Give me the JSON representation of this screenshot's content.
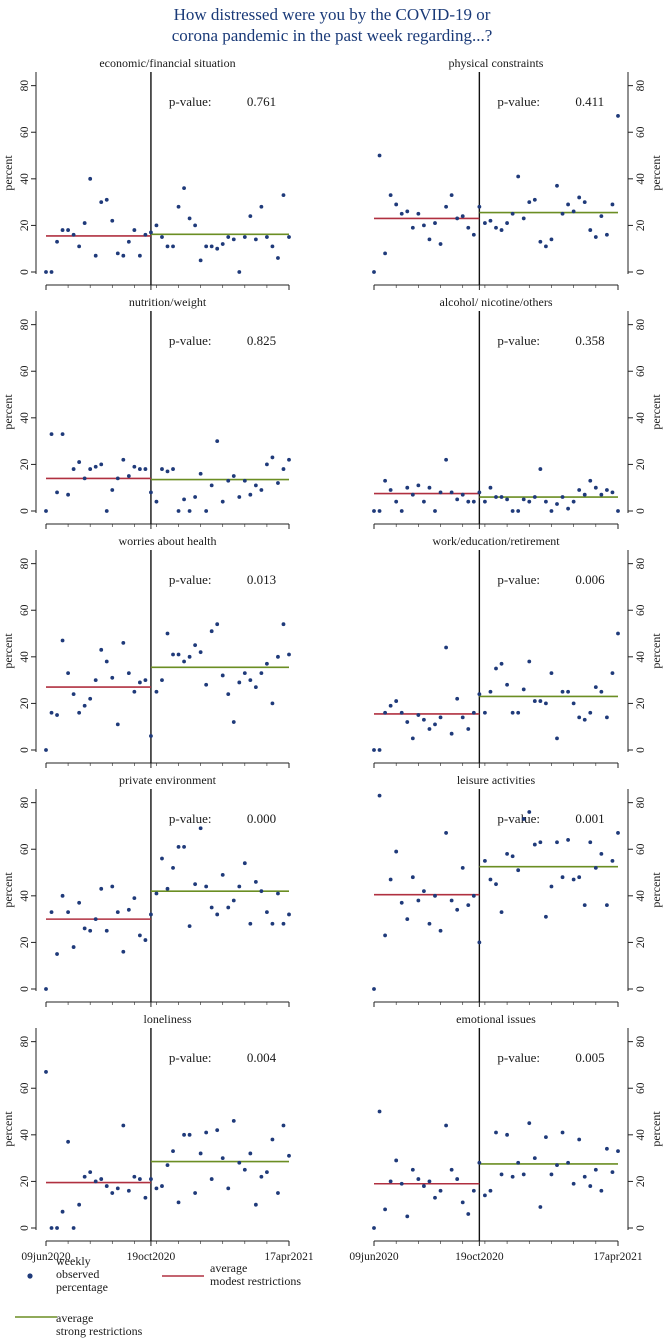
{
  "title_lines": [
    "How distressed were you by the COVID-19 or",
    "corona pandemic in the past week regarding...?"
  ],
  "colors": {
    "points": "#1f3a7a",
    "modest": "#b03040",
    "strong": "#6b8e23",
    "title": "#1a3a78",
    "axis": "#222222"
  },
  "x_tick_labels": [
    "09jun2020",
    "19oct2020",
    "17apr2021"
  ],
  "y_axis_label": "percent",
  "pvalue_label": "p-value:",
  "legend": {
    "points": [
      "weekly",
      "observed",
      "percentage"
    ],
    "modest": [
      "average",
      "modest restrictions"
    ],
    "strong": [
      "average",
      "strong restrictions"
    ]
  },
  "chart_data": [
    {
      "type": "scatter",
      "title": "economic/financial situation",
      "pvalue": "0.761",
      "ylim": [
        0,
        85
      ],
      "yticks": [
        0,
        20,
        40,
        60,
        80
      ],
      "cutoff_week": 19,
      "total_weeks": 45,
      "mean_modest": 15.5,
      "mean_strong": 16.2,
      "values": [
        0,
        0,
        13,
        18,
        18,
        16,
        11,
        21,
        40,
        7,
        30,
        31,
        22,
        8,
        7,
        13,
        18,
        7,
        16,
        17,
        20,
        15,
        11,
        11,
        28,
        36,
        23,
        20,
        5,
        11,
        11,
        10,
        12,
        15,
        14,
        0,
        15,
        24,
        14,
        28,
        15,
        11,
        6,
        33,
        15
      ]
    },
    {
      "type": "scatter",
      "title": "physical constraints",
      "pvalue": "0.411",
      "ylim": [
        0,
        85
      ],
      "yticks": [
        0,
        20,
        40,
        60,
        80
      ],
      "cutoff_week": 19,
      "total_weeks": 45,
      "mean_modest": 23,
      "mean_strong": 25.5,
      "values": [
        0,
        50,
        8,
        33,
        29,
        25,
        26,
        19,
        25,
        20,
        14,
        21,
        12,
        28,
        33,
        23,
        24,
        19,
        16,
        28,
        21,
        22,
        19,
        18,
        21,
        25,
        41,
        23,
        30,
        31,
        13,
        11,
        14,
        37,
        25,
        29,
        26,
        32,
        30,
        18,
        15,
        24,
        16,
        29,
        67
      ]
    },
    {
      "type": "scatter",
      "title": "nutrition/weight",
      "pvalue": "0.825",
      "ylim": [
        0,
        85
      ],
      "yticks": [
        0,
        20,
        40,
        60,
        80
      ],
      "cutoff_week": 19,
      "total_weeks": 45,
      "mean_modest": 14,
      "mean_strong": 13.5,
      "values": [
        0,
        33,
        8,
        33,
        7,
        18,
        21,
        14,
        18,
        19,
        20,
        0,
        9,
        14,
        22,
        15,
        19,
        18,
        18,
        8,
        4,
        18,
        17,
        18,
        0,
        5,
        0,
        6,
        16,
        0,
        11,
        30,
        4,
        13,
        15,
        6,
        13,
        7,
        11,
        9,
        20,
        23,
        12,
        18,
        22
      ]
    },
    {
      "type": "scatter",
      "title": "alcohol/ nicotine/others",
      "pvalue": "0.358",
      "ylim": [
        0,
        85
      ],
      "yticks": [
        0,
        20,
        40,
        60,
        80
      ],
      "cutoff_week": 19,
      "total_weeks": 45,
      "mean_modest": 7.5,
      "mean_strong": 6,
      "values": [
        0,
        0,
        13,
        9,
        4,
        0,
        10,
        7,
        11,
        4,
        10,
        0,
        8,
        22,
        8,
        5,
        7,
        4,
        4,
        8,
        4,
        10,
        6,
        6,
        5,
        0,
        0,
        5,
        4,
        6,
        18,
        4,
        0,
        3,
        6,
        1,
        4,
        9,
        7,
        13,
        10,
        7,
        9,
        8,
        0
      ]
    },
    {
      "type": "scatter",
      "title": "worries about health",
      "pvalue": "0.013",
      "ylim": [
        0,
        85
      ],
      "yticks": [
        0,
        20,
        40,
        60,
        80
      ],
      "cutoff_week": 19,
      "total_weeks": 45,
      "mean_modest": 27,
      "mean_strong": 35.5,
      "values": [
        0,
        16,
        15,
        47,
        33,
        24,
        16,
        19,
        22,
        30,
        43,
        38,
        31,
        11,
        46,
        33,
        25,
        29,
        30,
        6,
        25,
        30,
        50,
        41,
        41,
        38,
        40,
        45,
        42,
        28,
        51,
        54,
        32,
        24,
        12,
        29,
        33,
        30,
        27,
        33,
        37,
        20,
        40,
        54,
        41
      ]
    },
    {
      "type": "scatter",
      "title": "work/education/retirement",
      "pvalue": "0.006",
      "ylim": [
        0,
        85
      ],
      "yticks": [
        0,
        20,
        40,
        60,
        80
      ],
      "cutoff_week": 19,
      "total_weeks": 45,
      "mean_modest": 15.5,
      "mean_strong": 23,
      "values": [
        0,
        0,
        16,
        19,
        21,
        16,
        12,
        5,
        15,
        13,
        9,
        11,
        14,
        44,
        7,
        22,
        14,
        9,
        16,
        24,
        16,
        25,
        35,
        37,
        28,
        16,
        16,
        26,
        38,
        21,
        21,
        20,
        33,
        5,
        25,
        25,
        20,
        14,
        13,
        16,
        27,
        25,
        14,
        33,
        50
      ]
    },
    {
      "type": "scatter",
      "title": "private environment",
      "pvalue": "0.000",
      "ylim": [
        0,
        85
      ],
      "yticks": [
        0,
        20,
        40,
        60,
        80
      ],
      "cutoff_week": 19,
      "total_weeks": 45,
      "mean_modest": 30,
      "mean_strong": 42,
      "values": [
        0,
        33,
        15,
        40,
        33,
        18,
        37,
        26,
        25,
        30,
        43,
        25,
        44,
        33,
        16,
        34,
        39,
        23,
        21,
        32,
        41,
        56,
        43,
        52,
        61,
        61,
        27,
        45,
        69,
        44,
        35,
        32,
        49,
        35,
        38,
        44,
        54,
        28,
        46,
        42,
        33,
        28,
        41,
        28,
        32
      ]
    },
    {
      "type": "scatter",
      "title": "leisure activities",
      "pvalue": "0.001",
      "ylim": [
        0,
        85
      ],
      "yticks": [
        0,
        20,
        40,
        60,
        80
      ],
      "cutoff_week": 19,
      "total_weeks": 45,
      "mean_modest": 40.5,
      "mean_strong": 52.5,
      "values": [
        0,
        83,
        23,
        47,
        59,
        37,
        30,
        48,
        38,
        42,
        28,
        40,
        25,
        67,
        38,
        34,
        52,
        36,
        40,
        20,
        55,
        47,
        45,
        33,
        58,
        57,
        51,
        73,
        76,
        62,
        63,
        31,
        44,
        63,
        48,
        64,
        47,
        48,
        36,
        63,
        52,
        58,
        36,
        55,
        67
      ]
    },
    {
      "type": "scatter",
      "title": "loneliness",
      "pvalue": "0.004",
      "ylim": [
        0,
        85
      ],
      "yticks": [
        0,
        20,
        40,
        60,
        80
      ],
      "cutoff_week": 19,
      "total_weeks": 45,
      "mean_modest": 19.5,
      "mean_strong": 28.5,
      "values": [
        67,
        0,
        0,
        7,
        37,
        0,
        10,
        22,
        24,
        20,
        21,
        18,
        15,
        17,
        44,
        16,
        22,
        21,
        13,
        21,
        17,
        18,
        27,
        33,
        11,
        40,
        40,
        15,
        32,
        41,
        21,
        42,
        30,
        17,
        46,
        28,
        25,
        32,
        10,
        22,
        24,
        38,
        15,
        44,
        31
      ]
    },
    {
      "type": "scatter",
      "title": "emotional issues",
      "pvalue": "0.005",
      "ylim": [
        0,
        85
      ],
      "yticks": [
        0,
        20,
        40,
        60,
        80
      ],
      "cutoff_week": 19,
      "total_weeks": 45,
      "mean_modest": 19,
      "mean_strong": 27.5,
      "values": [
        0,
        50,
        8,
        20,
        29,
        19,
        5,
        25,
        21,
        18,
        20,
        13,
        16,
        44,
        25,
        21,
        11,
        6,
        16,
        28,
        14,
        16,
        41,
        23,
        40,
        22,
        28,
        23,
        45,
        30,
        9,
        39,
        23,
        27,
        41,
        28,
        19,
        38,
        22,
        18,
        25,
        16,
        34,
        24,
        33
      ]
    }
  ]
}
